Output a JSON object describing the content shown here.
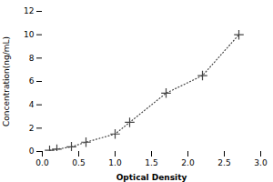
{
  "chart_data": {
    "type": "line",
    "xlabel": "Optical Density",
    "ylabel": "Concentration(ng/mL)",
    "x": [
      0.1,
      0.2,
      0.4,
      0.6,
      1.0,
      1.2,
      1.7,
      2.2,
      2.7
    ],
    "values": [
      0.1,
      0.2,
      0.4,
      0.8,
      1.5,
      2.5,
      5.0,
      6.5,
      10.0
    ],
    "color": "#444444",
    "marker": "plus",
    "line_style": "dotted",
    "xlim": [
      0,
      3
    ],
    "ylim": [
      0,
      12
    ],
    "xticks": [
      {
        "value": 0,
        "label": "0.0"
      },
      0.5,
      {
        "value": 1,
        "label": "1.0"
      },
      1.5,
      {
        "value": 2,
        "label": "2.0"
      },
      2.5,
      {
        "value": 3,
        "label": "3.0"
      }
    ],
    "yticks": [
      0,
      2,
      4,
      6,
      8,
      10,
      12
    ],
    "grid": false
  }
}
